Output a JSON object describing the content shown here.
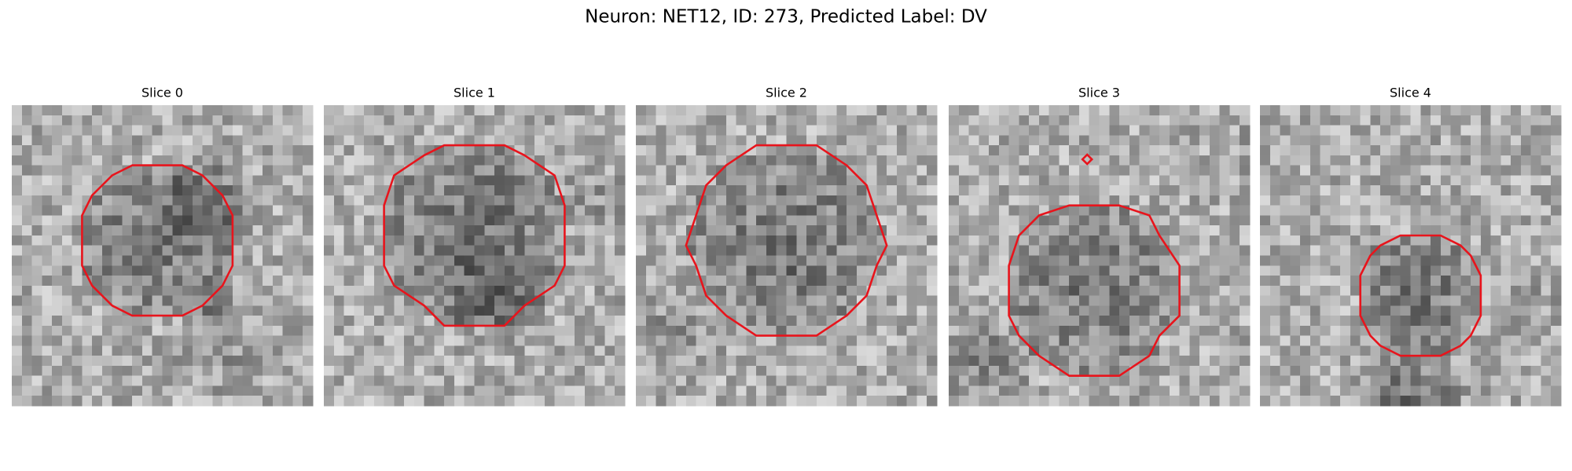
{
  "title": "Neuron: NET12, ID: 273, Predicted Label: DV",
  "panels": [
    {
      "title": "Slice 0"
    },
    {
      "title": "Slice 1"
    },
    {
      "title": "Slice 2"
    },
    {
      "title": "Slice 3"
    },
    {
      "title": "Slice 4"
    }
  ]
}
